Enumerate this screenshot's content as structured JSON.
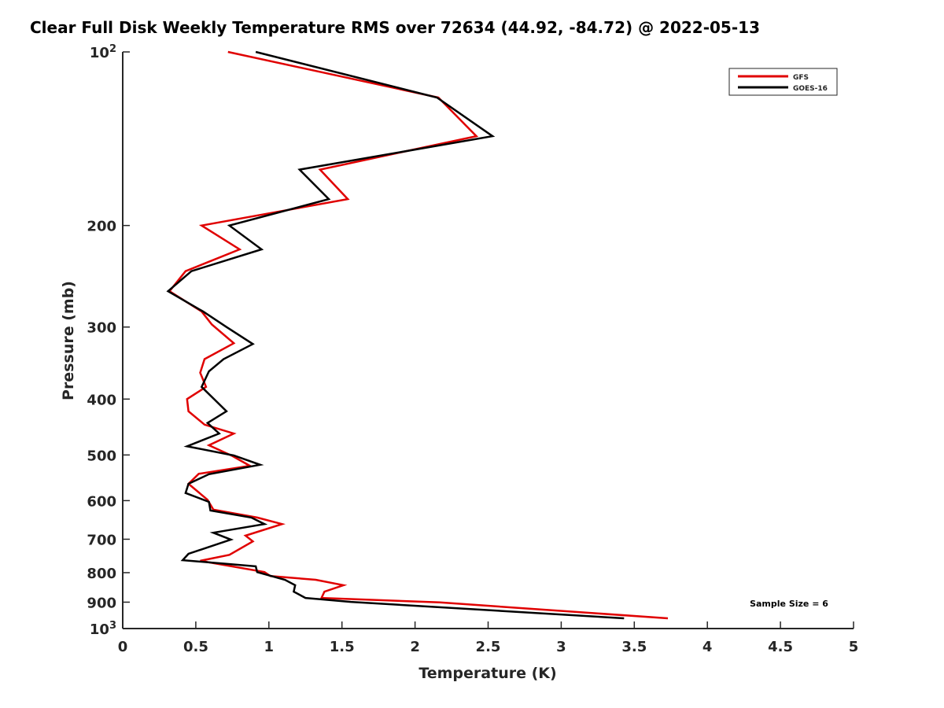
{
  "chart_data": {
    "type": "line",
    "title": "Clear Full Disk Weekly Temperature RMS over 72634 (44.92, -84.72) @ 2022-05-13",
    "xlabel": "Temperature (K)",
    "ylabel": "Pressure (mb)",
    "xlim": [
      0,
      5
    ],
    "ylim": [
      100,
      1000
    ],
    "yscale": "log",
    "yreversed": true,
    "xticks": [
      "0",
      "0.5",
      "1",
      "1.5",
      "2",
      "2.5",
      "3",
      "3.5",
      "4",
      "4.5",
      "5"
    ],
    "xtick_values": [
      0,
      0.5,
      1,
      1.5,
      2,
      2.5,
      3,
      3.5,
      4,
      4.5,
      5
    ],
    "yticks": [
      {
        "value": 100,
        "base": "10",
        "exp": "2"
      },
      {
        "value": 200,
        "label": "200"
      },
      {
        "value": 300,
        "label": "300"
      },
      {
        "value": 400,
        "label": "400"
      },
      {
        "value": 500,
        "label": "500"
      },
      {
        "value": 600,
        "label": "600"
      },
      {
        "value": 700,
        "label": "700"
      },
      {
        "value": 800,
        "label": "800"
      },
      {
        "value": 900,
        "label": "900"
      },
      {
        "value": 1000,
        "base": "10",
        "exp": "3"
      }
    ],
    "grid": false,
    "legend_position": "top-right",
    "annotation": "Sample Size = 6",
    "series": [
      {
        "name": "GFS",
        "color": "#e00000",
        "points": [
          [
            0.72,
            100
          ],
          [
            2.16,
            120
          ],
          [
            2.42,
            140
          ],
          [
            1.35,
            160
          ],
          [
            1.54,
            180
          ],
          [
            0.54,
            200
          ],
          [
            0.8,
            220
          ],
          [
            0.43,
            240
          ],
          [
            0.32,
            260
          ],
          [
            0.54,
            282
          ],
          [
            0.61,
            297
          ],
          [
            0.76,
            320
          ],
          [
            0.56,
            341
          ],
          [
            0.53,
            360
          ],
          [
            0.57,
            381
          ],
          [
            0.44,
            400
          ],
          [
            0.45,
            420
          ],
          [
            0.56,
            443
          ],
          [
            0.76,
            459
          ],
          [
            0.59,
            481
          ],
          [
            0.75,
            502
          ],
          [
            0.87,
            522
          ],
          [
            0.52,
            539
          ],
          [
            0.45,
            561
          ],
          [
            0.58,
            598
          ],
          [
            0.62,
            622
          ],
          [
            0.92,
            642
          ],
          [
            1.09,
            659
          ],
          [
            0.84,
            690
          ],
          [
            0.89,
            706
          ],
          [
            0.73,
            745
          ],
          [
            0.53,
            763
          ],
          [
            0.97,
            798
          ],
          [
            1.01,
            811
          ],
          [
            1.32,
            823
          ],
          [
            1.51,
            841
          ],
          [
            1.38,
            863
          ],
          [
            1.36,
            885
          ],
          [
            2.17,
            901
          ],
          [
            3.73,
            960
          ]
        ]
      },
      {
        "name": "GOES-16",
        "color": "#000000",
        "points": [
          [
            0.91,
            100
          ],
          [
            2.15,
            120
          ],
          [
            2.53,
            140
          ],
          [
            1.21,
            160
          ],
          [
            1.41,
            180
          ],
          [
            0.73,
            200
          ],
          [
            0.95,
            220
          ],
          [
            0.47,
            240
          ],
          [
            0.31,
            260
          ],
          [
            0.55,
            282
          ],
          [
            0.71,
            300
          ],
          [
            0.89,
            321
          ],
          [
            0.69,
            341
          ],
          [
            0.59,
            358
          ],
          [
            0.54,
            381
          ],
          [
            0.71,
            420
          ],
          [
            0.58,
            440
          ],
          [
            0.66,
            459
          ],
          [
            0.44,
            483
          ],
          [
            0.76,
            501
          ],
          [
            0.94,
            520
          ],
          [
            0.59,
            540
          ],
          [
            0.45,
            561
          ],
          [
            0.43,
            582
          ],
          [
            0.59,
            603
          ],
          [
            0.6,
            624
          ],
          [
            0.88,
            642
          ],
          [
            0.97,
            659
          ],
          [
            0.62,
            682
          ],
          [
            0.74,
            701
          ],
          [
            0.45,
            742
          ],
          [
            0.41,
            761
          ],
          [
            0.91,
            780
          ],
          [
            0.92,
            798
          ],
          [
            1.11,
            823
          ],
          [
            1.18,
            841
          ],
          [
            1.17,
            863
          ],
          [
            1.25,
            885
          ],
          [
            1.56,
            899
          ],
          [
            3.43,
            960
          ]
        ]
      }
    ]
  }
}
